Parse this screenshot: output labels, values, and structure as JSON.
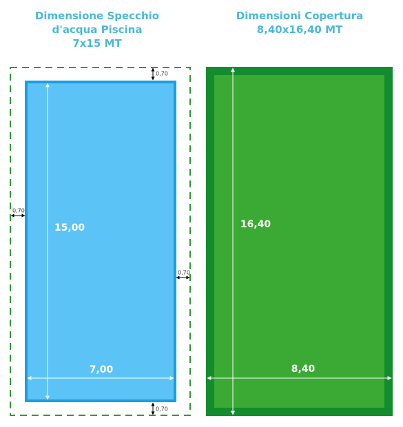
{
  "left": {
    "title": [
      "Dimensione Specchio",
      "d'acqua Piscina",
      "7x15 MT"
    ],
    "length": "15,00",
    "width": "7,00",
    "margins": [
      "0,70",
      "0,70",
      "0,70",
      "0,70"
    ]
  },
  "right": {
    "title": [
      "Dimensioni Copertura",
      "8,40x16,40 MT"
    ],
    "length": "16,40",
    "width": "8,40"
  }
}
